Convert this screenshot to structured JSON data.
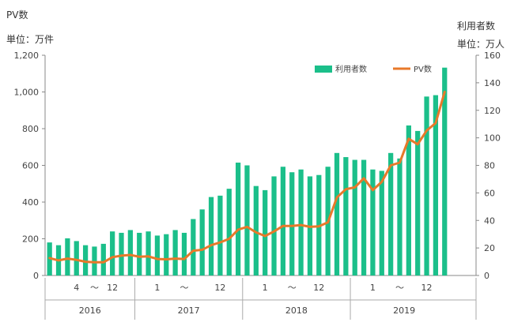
{
  "labels": {
    "left_title": "PV数",
    "left_unit": "単位：万件",
    "right_title": "利用者数",
    "right_unit": "単位：万人"
  },
  "chart_data": {
    "type": "bar+line",
    "categories": [
      "2016-01",
      "2016-02",
      "2016-03",
      "2016-04",
      "2016-05",
      "2016-06",
      "2016-07",
      "2016-08",
      "2016-09",
      "2016-10",
      "2016-11",
      "2016-12",
      "2017-01",
      "2017-02",
      "2017-03",
      "2017-04",
      "2017-05",
      "2017-06",
      "2017-07",
      "2017-08",
      "2017-09",
      "2017-10",
      "2017-11",
      "2017-12",
      "2018-01",
      "2018-02",
      "2018-03",
      "2018-04",
      "2018-05",
      "2018-06",
      "2018-07",
      "2018-08",
      "2018-09",
      "2018-10",
      "2018-11",
      "2018-12",
      "2019-01",
      "2019-02",
      "2019-03",
      "2019-04",
      "2019-05",
      "2019-06",
      "2019-07",
      "2019-08",
      "2019-09",
      "2019-10",
      "2019-11",
      "2019-12"
    ],
    "x_tick_labels": [
      {
        "index": 3,
        "text": "4"
      },
      {
        "index": 5,
        "text": "～"
      },
      {
        "index": 7,
        "text": "12"
      },
      {
        "index": 12,
        "text": "1"
      },
      {
        "index": 15,
        "text": "～"
      },
      {
        "index": 19,
        "text": "12"
      },
      {
        "index": 24,
        "text": "1"
      },
      {
        "index": 27,
        "text": "～"
      },
      {
        "index": 30,
        "text": "12"
      },
      {
        "index": 36,
        "text": "1"
      },
      {
        "index": 39,
        "text": "～"
      },
      {
        "index": 42,
        "text": "12"
      }
    ],
    "year_groups": [
      {
        "year": "2016",
        "start": 0,
        "end": 9
      },
      {
        "year": "2017",
        "start": 10,
        "end": 21
      },
      {
        "year": "2018",
        "start": 22,
        "end": 33
      },
      {
        "year": "2019",
        "start": 34,
        "end": 45
      }
    ],
    "left_axis": {
      "ylim": [
        0,
        1200
      ],
      "ticks": [
        "0",
        "200",
        "400",
        "600",
        "800",
        "1,000",
        "1,200"
      ]
    },
    "right_axis": {
      "ylim": [
        0,
        160
      ],
      "ticks": [
        "0",
        "20",
        "40",
        "60",
        "80",
        "100",
        "120",
        "140",
        "160"
      ]
    },
    "series": [
      {
        "name": "利用者数",
        "kind": "bar",
        "axis": "right",
        "color": "#1bbf8a",
        "values": [
          24,
          22,
          27,
          25,
          22,
          21,
          23,
          32,
          31,
          33,
          31,
          32,
          29,
          30,
          33,
          31,
          41,
          48,
          57,
          58,
          63,
          82,
          80,
          65,
          62,
          72,
          79,
          75,
          77,
          72,
          73,
          79,
          89,
          86,
          84,
          84,
          77,
          76,
          89,
          85,
          109,
          105,
          130,
          131,
          151,
          0,
          0,
          0
        ]
      },
      {
        "name": "PV数",
        "kind": "line",
        "axis": "left",
        "color": "#e8792a",
        "values": [
          95,
          82,
          92,
          85,
          75,
          72,
          72,
          100,
          108,
          112,
          102,
          104,
          90,
          88,
          92,
          90,
          135,
          140,
          165,
          180,
          200,
          250,
          265,
          235,
          215,
          240,
          270,
          270,
          275,
          265,
          268,
          290,
          425,
          470,
          480,
          530,
          465,
          510,
          600,
          615,
          745,
          715,
          790,
          830,
          1000,
          null,
          null,
          null
        ]
      }
    ],
    "legend_position": "top-right",
    "grid": false
  }
}
